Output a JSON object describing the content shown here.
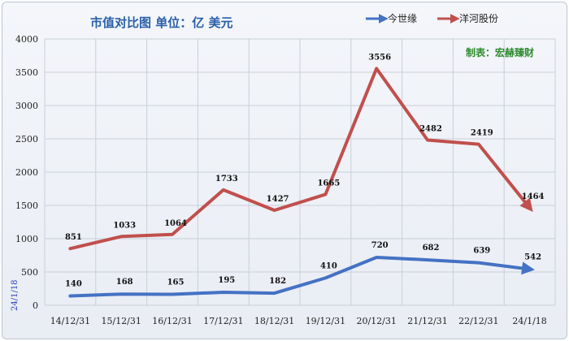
{
  "chart_data": {
    "type": "line",
    "title": "市值对比图  单位：亿 美元",
    "credit": "制表：宏赫臻财",
    "side_label": "24/1/18",
    "categories": [
      "14/12/31",
      "15/12/31",
      "16/12/31",
      "17/12/31",
      "18/12/31",
      "19/12/31",
      "20/12/31",
      "21/12/31",
      "22/12/31",
      "24/1/18"
    ],
    "series": [
      {
        "name": "今世缘",
        "color": "#4472c4",
        "values": [
          140,
          168,
          165,
          195,
          182,
          410,
          720,
          682,
          639,
          542
        ]
      },
      {
        "name": "洋河股份",
        "color": "#c0504d",
        "values": [
          851,
          1033,
          1064,
          1733,
          1427,
          1665,
          3556,
          2482,
          2419,
          1464
        ]
      }
    ],
    "ylim": [
      0,
      4000
    ],
    "yticks": [
      0,
      500,
      1000,
      1500,
      2000,
      2500,
      3000,
      3500,
      4000
    ],
    "grid": true,
    "legend_position": "top-right"
  }
}
